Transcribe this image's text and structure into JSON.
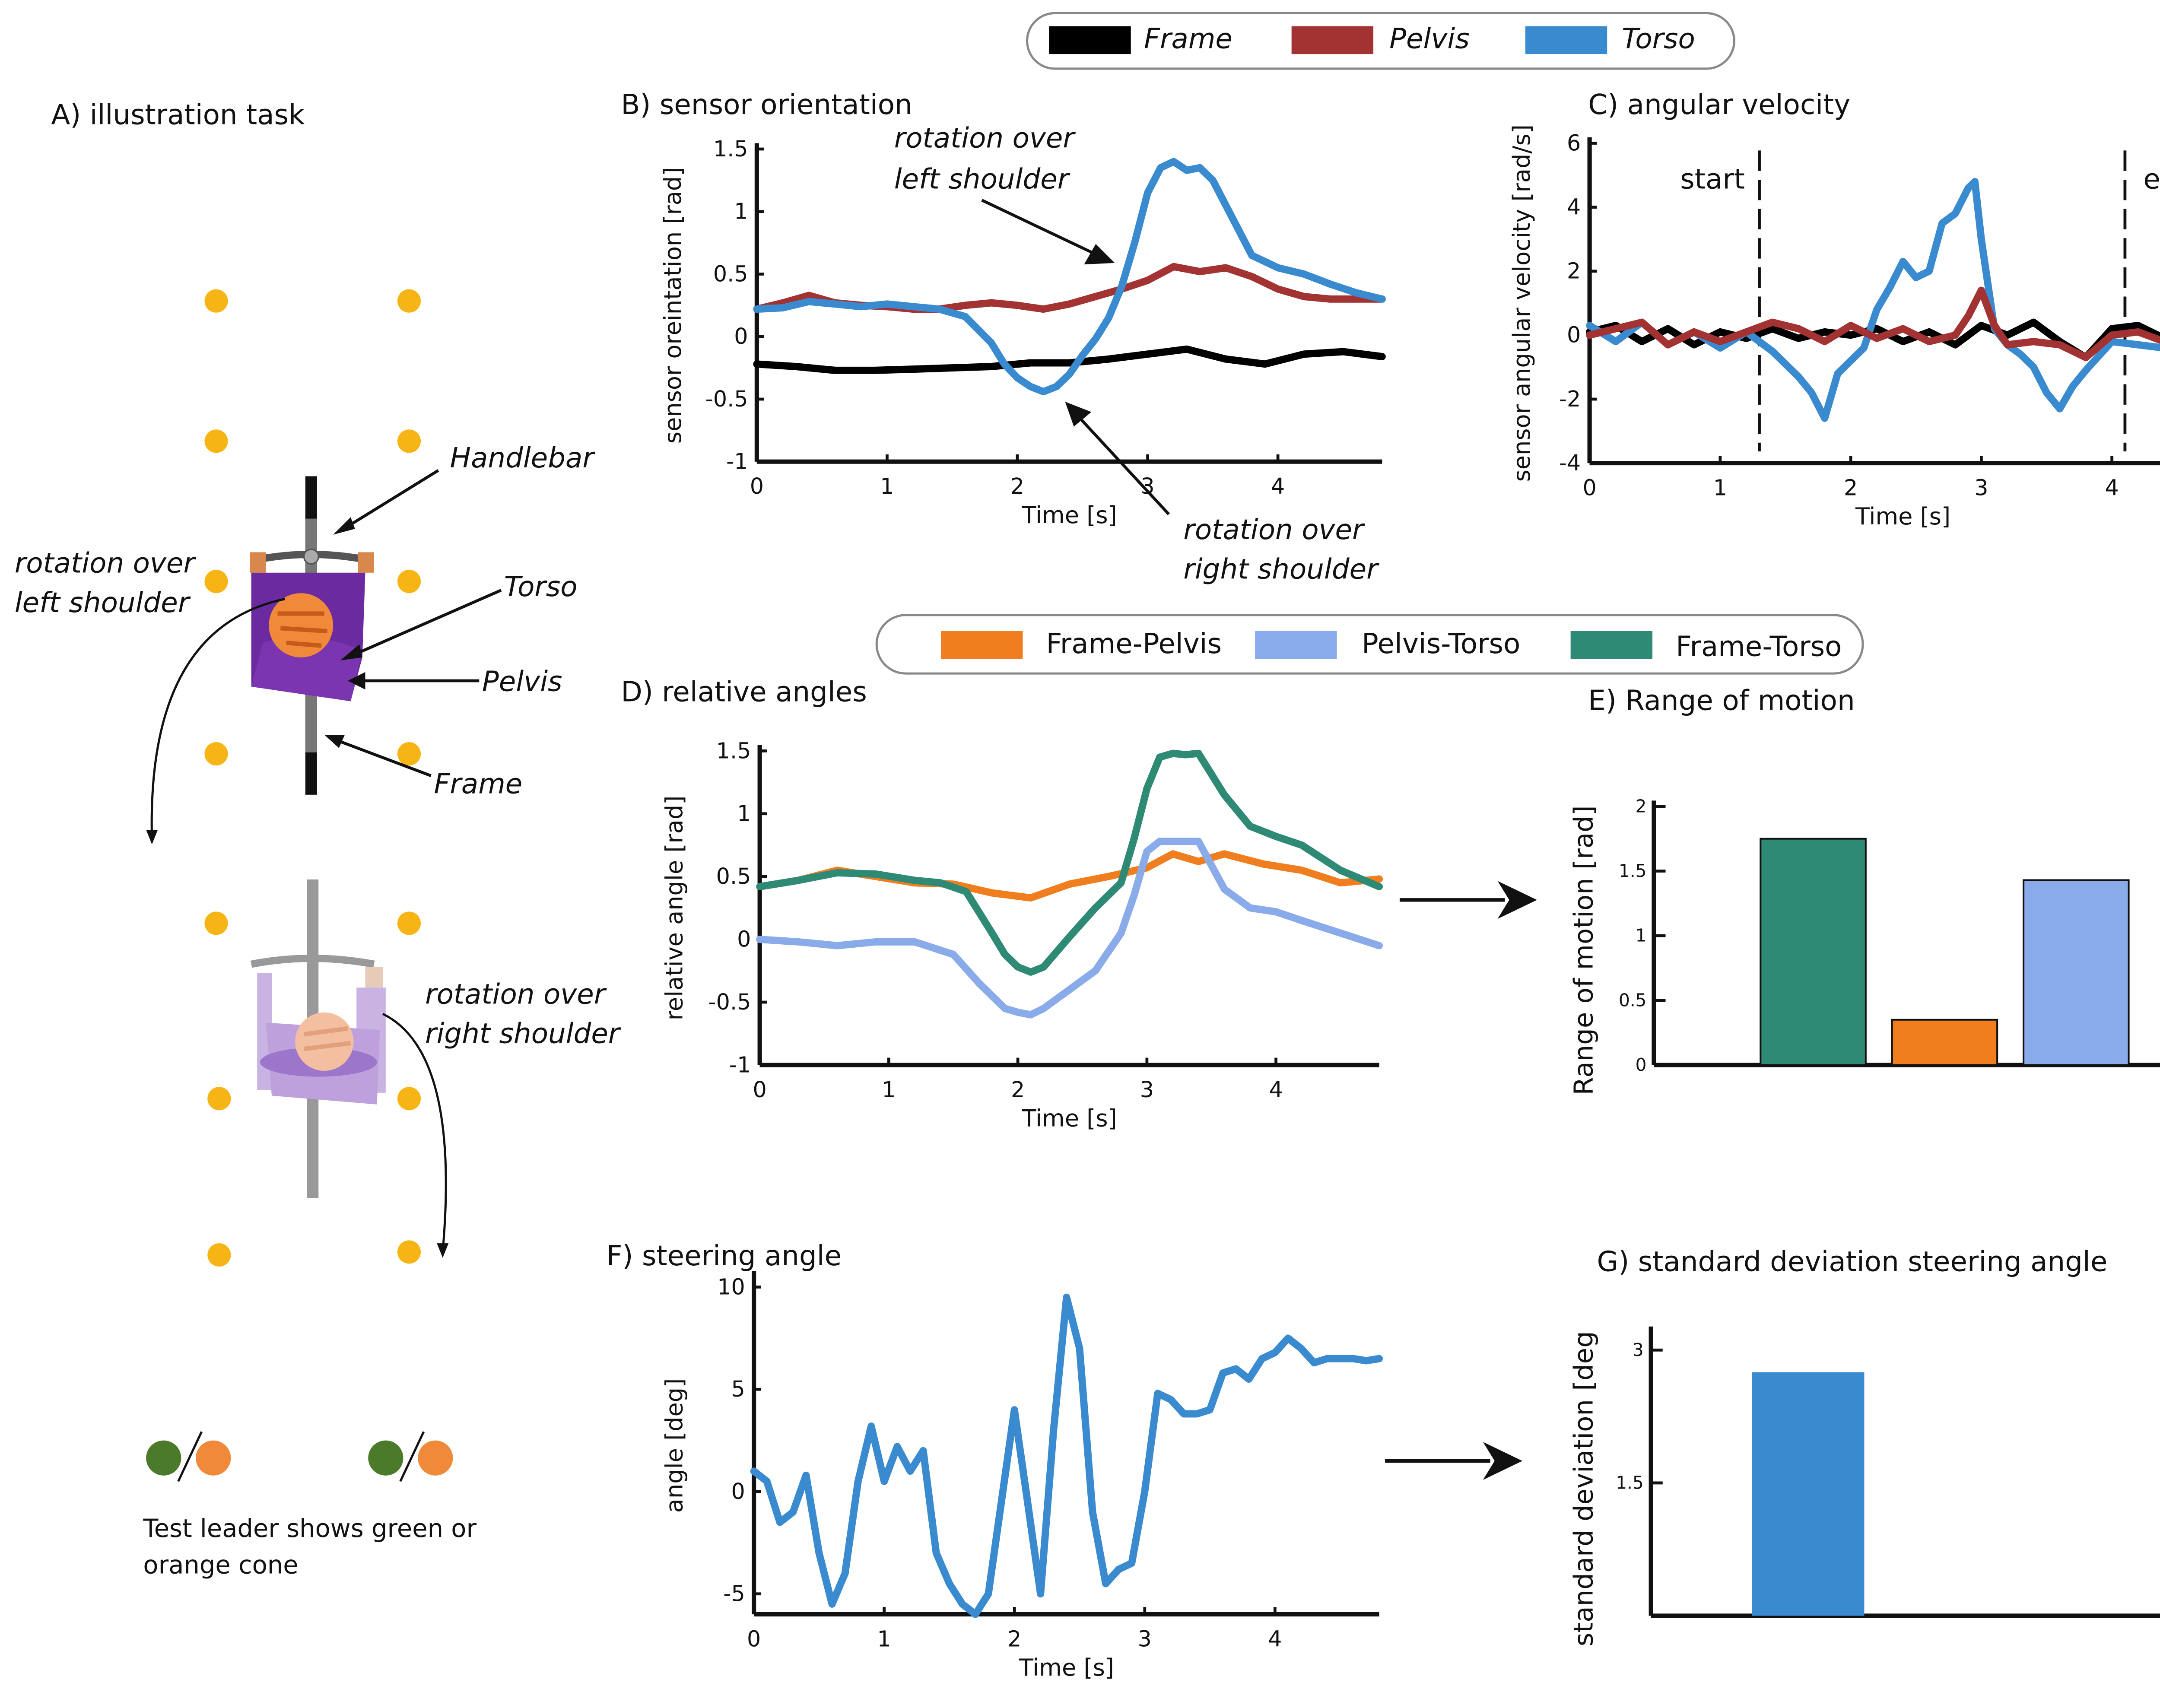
{
  "panels": {
    "A": {
      "title": "A) illustration task",
      "labels": {
        "handlebar": "Handlebar",
        "torso": "Torso",
        "pelvis": "Pelvis",
        "frame": "Frame",
        "rot_left_1": "rotation over",
        "rot_left_2": "left shoulder",
        "rot_right_1": "rotation over",
        "rot_right_2": "right shoulder"
      },
      "caption_1": "Test leader shows green or",
      "caption_2": "orange cone",
      "colors": {
        "cone_yellow": "#f7b515",
        "torso_purple": "#6b2aa0",
        "pelvis_purple": "#7b35b0",
        "head_orange": "#f08a3a",
        "green_cone": "#4a7a2a",
        "orange_cone": "#f08a3a",
        "frame_grey": "#777777"
      }
    },
    "legend_top": {
      "items": [
        {
          "label": "Frame",
          "color": "#000000"
        },
        {
          "label": "Pelvis",
          "color": "#a33232"
        },
        {
          "label": "Torso",
          "color": "#3a8ad0"
        }
      ]
    },
    "legend_mid": {
      "items": [
        {
          "label": "Frame-Pelvis",
          "color": "#f07d1e"
        },
        {
          "label": "Pelvis-Torso",
          "color": "#8aabea"
        },
        {
          "label": "Frame-Torso",
          "color": "#2e8a74"
        }
      ]
    },
    "B": {
      "title": "B) sensor orientation",
      "anno_left_1": "rotation over",
      "anno_left_2": "left shoulder",
      "anno_right_1": "rotation over",
      "anno_right_2": "right shoulder"
    },
    "C": {
      "title": "C) angular velocity",
      "start_label": "start",
      "end_label": "end"
    },
    "D": {
      "title": "D) relative angles"
    },
    "E": {
      "title": "E) Range of motion"
    },
    "F": {
      "title": "F) steering angle"
    },
    "G": {
      "title": "G) standard deviation steering angle"
    }
  },
  "chart_data": [
    {
      "id": "B",
      "type": "line",
      "title": "B) sensor orientation",
      "xlabel": "Time [s]",
      "ylabel": "sensor oreintation [rad]",
      "xlim": [
        0,
        4.8
      ],
      "ylim": [
        -1,
        1.5
      ],
      "xticks": [
        0,
        1,
        2,
        3,
        4
      ],
      "yticks": [
        -1,
        -0.5,
        0,
        0.5,
        1,
        1.5
      ],
      "yticklabels": [
        "-1",
        "-0.5",
        "0",
        "0.5",
        "1",
        "1.5"
      ],
      "series": [
        {
          "name": "Frame",
          "color": "#000000",
          "x": [
            0,
            0.3,
            0.6,
            0.9,
            1.2,
            1.5,
            1.8,
            2.1,
            2.4,
            2.7,
            3.0,
            3.3,
            3.6,
            3.9,
            4.2,
            4.5,
            4.8
          ],
          "y": [
            -0.22,
            -0.24,
            -0.27,
            -0.27,
            -0.26,
            -0.25,
            -0.24,
            -0.21,
            -0.21,
            -0.18,
            -0.14,
            -0.1,
            -0.18,
            -0.22,
            -0.14,
            -0.12,
            -0.16
          ]
        },
        {
          "name": "Pelvis",
          "color": "#a33232",
          "x": [
            0,
            0.2,
            0.4,
            0.6,
            0.8,
            1.0,
            1.2,
            1.4,
            1.6,
            1.8,
            2.0,
            2.2,
            2.4,
            2.6,
            2.8,
            3.0,
            3.2,
            3.4,
            3.6,
            3.8,
            4.0,
            4.2,
            4.4,
            4.6,
            4.8
          ],
          "y": [
            0.22,
            0.27,
            0.33,
            0.27,
            0.25,
            0.24,
            0.22,
            0.22,
            0.25,
            0.27,
            0.25,
            0.22,
            0.26,
            0.32,
            0.38,
            0.45,
            0.56,
            0.52,
            0.55,
            0.48,
            0.38,
            0.32,
            0.3,
            0.3,
            0.3
          ]
        },
        {
          "name": "Torso",
          "color": "#3a8ad0",
          "x": [
            0,
            0.2,
            0.4,
            0.6,
            0.8,
            1.0,
            1.2,
            1.4,
            1.6,
            1.8,
            1.9,
            2.0,
            2.1,
            2.2,
            2.3,
            2.4,
            2.5,
            2.6,
            2.7,
            2.8,
            2.9,
            3.0,
            3.1,
            3.2,
            3.3,
            3.4,
            3.5,
            3.6,
            3.7,
            3.8,
            4.0,
            4.2,
            4.4,
            4.6,
            4.8
          ],
          "y": [
            0.22,
            0.23,
            0.28,
            0.26,
            0.24,
            0.26,
            0.24,
            0.22,
            0.16,
            -0.05,
            -0.22,
            -0.33,
            -0.4,
            -0.44,
            -0.4,
            -0.3,
            -0.15,
            -0.02,
            0.15,
            0.4,
            0.75,
            1.15,
            1.35,
            1.4,
            1.33,
            1.35,
            1.25,
            1.05,
            0.85,
            0.65,
            0.55,
            0.5,
            0.42,
            0.35,
            0.3
          ]
        }
      ]
    },
    {
      "id": "C",
      "type": "line",
      "title": "C) angular velocity",
      "xlabel": "Time [s]",
      "ylabel": "sensor angular velocity  [rad/s]",
      "xlim": [
        0,
        4.8
      ],
      "ylim": [
        -4,
        6
      ],
      "xticks": [
        0,
        1,
        2,
        3,
        4
      ],
      "yticks": [
        -4,
        -2,
        0,
        2,
        4,
        6
      ],
      "yticklabels": [
        "-4",
        "-2",
        "0",
        "2",
        "4",
        "6"
      ],
      "markers": [
        {
          "label": "start",
          "x": 1.3
        },
        {
          "label": "end",
          "x": 4.1
        }
      ],
      "series": [
        {
          "name": "Frame",
          "color": "#000000",
          "x": [
            0,
            0.2,
            0.4,
            0.6,
            0.8,
            1.0,
            1.2,
            1.4,
            1.6,
            1.8,
            2.0,
            2.2,
            2.4,
            2.6,
            2.8,
            3.0,
            3.2,
            3.4,
            3.6,
            3.8,
            4.0,
            4.2,
            4.4,
            4.6,
            4.8
          ],
          "y": [
            0.1,
            0.3,
            -0.2,
            0.2,
            -0.3,
            0.1,
            -0.1,
            0.2,
            -0.1,
            0.1,
            0.0,
            0.2,
            -0.2,
            0.1,
            -0.3,
            0.3,
            0.0,
            0.4,
            -0.2,
            -0.7,
            0.2,
            0.3,
            -0.1,
            0.2,
            -0.2
          ]
        },
        {
          "name": "Torso",
          "color": "#3a8ad0",
          "x": [
            0,
            0.2,
            0.4,
            0.6,
            0.8,
            1.0,
            1.2,
            1.4,
            1.6,
            1.7,
            1.8,
            1.9,
            2.0,
            2.1,
            2.2,
            2.3,
            2.4,
            2.5,
            2.6,
            2.7,
            2.8,
            2.9,
            2.95,
            3.0,
            3.1,
            3.2,
            3.3,
            3.4,
            3.5,
            3.6,
            3.7,
            3.8,
            4.0,
            4.2,
            4.4,
            4.6,
            4.8
          ],
          "y": [
            0.3,
            -0.2,
            0.4,
            -0.3,
            0.1,
            -0.4,
            0.1,
            -0.5,
            -1.3,
            -1.8,
            -2.6,
            -1.2,
            -0.8,
            -0.4,
            0.8,
            1.5,
            2.3,
            1.8,
            2.0,
            3.5,
            3.8,
            4.6,
            4.8,
            3.0,
            0.2,
            -0.3,
            -0.6,
            -1.0,
            -1.8,
            -2.3,
            -1.6,
            -1.1,
            -0.2,
            -0.3,
            -0.4,
            -0.1,
            -0.2
          ]
        },
        {
          "name": "Pelvis",
          "color": "#a33232",
          "x": [
            0,
            0.2,
            0.4,
            0.6,
            0.8,
            1.0,
            1.2,
            1.4,
            1.6,
            1.8,
            2.0,
            2.2,
            2.4,
            2.6,
            2.8,
            2.9,
            3.0,
            3.1,
            3.2,
            3.4,
            3.6,
            3.8,
            4.0,
            4.2,
            4.4,
            4.6,
            4.8
          ],
          "y": [
            0.0,
            0.2,
            0.4,
            -0.3,
            0.1,
            -0.2,
            0.1,
            0.4,
            0.2,
            -0.2,
            0.3,
            -0.1,
            0.2,
            -0.2,
            0.0,
            0.6,
            1.4,
            0.3,
            -0.3,
            -0.2,
            -0.3,
            -0.7,
            0.0,
            0.1,
            -0.2,
            0.2,
            0.1
          ]
        }
      ]
    },
    {
      "id": "D",
      "type": "line",
      "title": "D) relative angles",
      "xlabel": "Time [s]",
      "ylabel": "relative angle [rad]",
      "xlim": [
        0,
        4.8
      ],
      "ylim": [
        -1,
        1.5
      ],
      "xticks": [
        0,
        1,
        2,
        3,
        4
      ],
      "yticks": [
        -1,
        -0.5,
        0,
        0.5,
        1,
        1.5
      ],
      "yticklabels": [
        "-1",
        "-0.5",
        "0",
        "0.5",
        "1",
        "1.5"
      ],
      "series": [
        {
          "name": "Frame-Pelvis",
          "color": "#f07d1e",
          "x": [
            0,
            0.3,
            0.6,
            0.9,
            1.2,
            1.5,
            1.8,
            2.1,
            2.4,
            2.7,
            3.0,
            3.2,
            3.4,
            3.6,
            3.9,
            4.2,
            4.5,
            4.8
          ],
          "y": [
            0.42,
            0.47,
            0.55,
            0.5,
            0.45,
            0.44,
            0.37,
            0.33,
            0.44,
            0.5,
            0.57,
            0.68,
            0.62,
            0.68,
            0.6,
            0.55,
            0.45,
            0.48
          ]
        },
        {
          "name": "Pelvis-Torso",
          "color": "#8aabea",
          "x": [
            0,
            0.3,
            0.6,
            0.9,
            1.2,
            1.5,
            1.7,
            1.9,
            2.0,
            2.1,
            2.2,
            2.4,
            2.6,
            2.8,
            2.9,
            3.0,
            3.1,
            3.2,
            3.4,
            3.6,
            3.8,
            4.0,
            4.2,
            4.5,
            4.8
          ],
          "y": [
            0.0,
            -0.02,
            -0.05,
            -0.02,
            -0.02,
            -0.12,
            -0.35,
            -0.55,
            -0.58,
            -0.6,
            -0.55,
            -0.4,
            -0.25,
            0.05,
            0.35,
            0.7,
            0.78,
            0.78,
            0.78,
            0.4,
            0.25,
            0.22,
            0.15,
            0.05,
            -0.05
          ]
        },
        {
          "name": "Frame-Torso",
          "color": "#2e8a74",
          "x": [
            0,
            0.3,
            0.6,
            0.9,
            1.2,
            1.4,
            1.6,
            1.8,
            1.9,
            2.0,
            2.1,
            2.2,
            2.4,
            2.6,
            2.8,
            2.9,
            3.0,
            3.1,
            3.2,
            3.3,
            3.4,
            3.6,
            3.8,
            4.0,
            4.2,
            4.5,
            4.8
          ],
          "y": [
            0.42,
            0.47,
            0.53,
            0.52,
            0.47,
            0.45,
            0.38,
            0.05,
            -0.12,
            -0.22,
            -0.26,
            -0.22,
            0.02,
            0.25,
            0.45,
            0.8,
            1.2,
            1.45,
            1.48,
            1.47,
            1.48,
            1.15,
            0.9,
            0.82,
            0.75,
            0.55,
            0.42
          ]
        }
      ]
    },
    {
      "id": "E",
      "type": "bar",
      "title": "E) Range of motion",
      "xlabel": "",
      "ylabel": "Range of motion [rad]",
      "ylim": [
        0,
        2
      ],
      "yticks": [
        0,
        0.5,
        1,
        1.5,
        2
      ],
      "yticklabels": [
        "0",
        "0.5",
        "1",
        "1.5",
        "2"
      ],
      "categories": [
        "Frame-Torso",
        "Frame-Pelvis",
        "Pelvis-Torso"
      ],
      "values": [
        1.75,
        0.35,
        1.43
      ],
      "colors": [
        "#2e8a74",
        "#f07d1e",
        "#8aabea"
      ]
    },
    {
      "id": "F",
      "type": "line",
      "title": "F) steering angle",
      "xlabel": "Time [s]",
      "ylabel": "angle [deg]",
      "xlim": [
        0,
        4.8
      ],
      "ylim": [
        -6,
        10.5
      ],
      "xticks": [
        0,
        1,
        2,
        3,
        4
      ],
      "yticks": [
        -5,
        0,
        5,
        10
      ],
      "yticklabels": [
        "-5",
        "0",
        "5",
        "10"
      ],
      "series": [
        {
          "name": "",
          "color": "#3a8ad0",
          "x": [
            0,
            0.1,
            0.2,
            0.3,
            0.4,
            0.5,
            0.6,
            0.7,
            0.8,
            0.9,
            1.0,
            1.1,
            1.2,
            1.3,
            1.4,
            1.5,
            1.6,
            1.7,
            1.8,
            1.9,
            2.0,
            2.1,
            2.2,
            2.3,
            2.4,
            2.5,
            2.6,
            2.7,
            2.8,
            2.9,
            3.0,
            3.1,
            3.2,
            3.3,
            3.4,
            3.5,
            3.6,
            3.7,
            3.8,
            3.9,
            4.0,
            4.1,
            4.2,
            4.3,
            4.4,
            4.5,
            4.6,
            4.7,
            4.8
          ],
          "y": [
            1.0,
            0.5,
            -1.5,
            -1.0,
            0.8,
            -3.0,
            -5.5,
            -4.0,
            0.5,
            3.2,
            0.5,
            2.2,
            1.0,
            2.0,
            -3.0,
            -4.5,
            -5.5,
            -6.0,
            -5.0,
            -0.5,
            4.0,
            -0.5,
            -5.0,
            3.0,
            9.5,
            7.0,
            -1.0,
            -4.5,
            -3.8,
            -3.5,
            0.0,
            4.8,
            4.5,
            3.8,
            3.8,
            4.0,
            5.8,
            6.0,
            5.5,
            6.5,
            6.8,
            7.5,
            7.0,
            6.3,
            6.5,
            6.5,
            6.5,
            6.4,
            6.5
          ]
        }
      ]
    },
    {
      "id": "G",
      "type": "bar",
      "title": "G) standard deviation steering angle",
      "xlabel": "",
      "ylabel": "standard deviation [deg",
      "ylim": [
        0,
        3.2
      ],
      "yticks": [
        1.5,
        3
      ],
      "yticklabels": [
        "1.5",
        "3"
      ],
      "categories": [
        ""
      ],
      "values": [
        2.75
      ],
      "colors": [
        "#3a8ad0"
      ]
    }
  ]
}
